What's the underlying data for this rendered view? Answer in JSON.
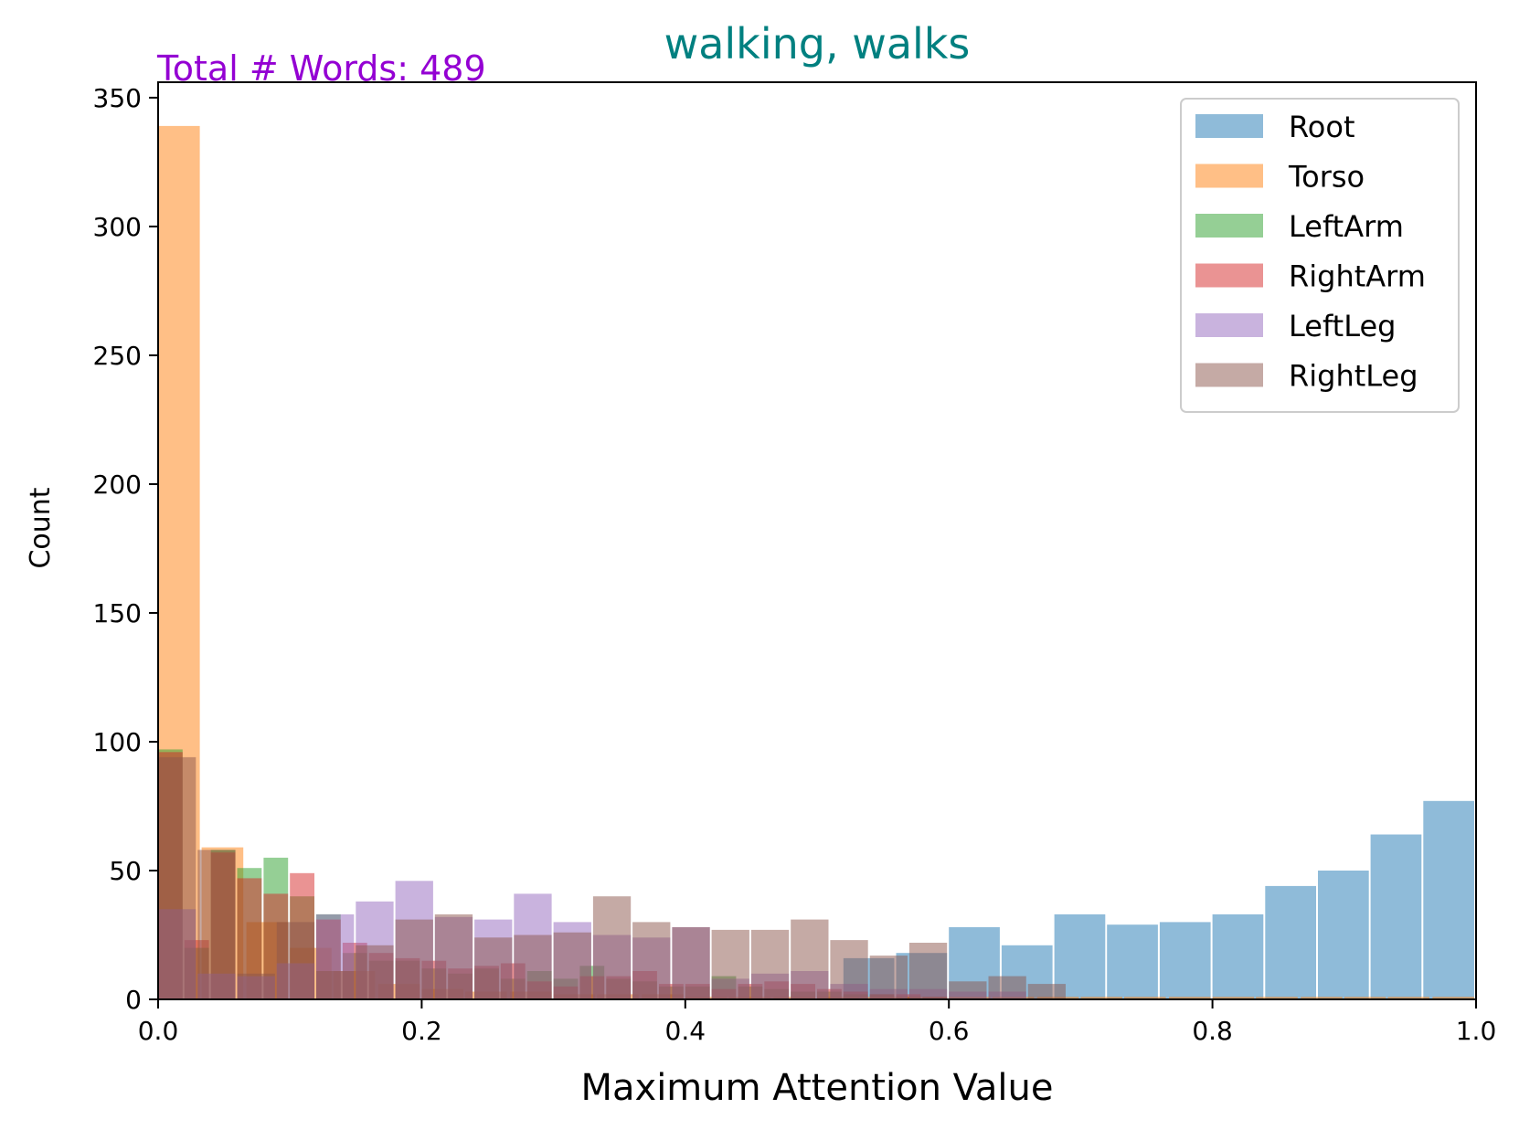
{
  "chart_data": {
    "type": "bar",
    "title": "walking, walks",
    "title_color": "#008080",
    "annotation": "Total # Words: 489",
    "annotation_color": "#9400D3",
    "xlabel": "Maximum Attention Value",
    "ylabel": "Count",
    "xlim": [
      0.0,
      1.0
    ],
    "ylim": [
      0,
      356
    ],
    "xticks": [
      "0.0",
      "0.2",
      "0.4",
      "0.6",
      "0.8",
      "1.0"
    ],
    "xtick_values": [
      0.0,
      0.2,
      0.4,
      0.6,
      0.8,
      1.0
    ],
    "yticks": [
      "0",
      "50",
      "100",
      "150",
      "200",
      "250",
      "300",
      "350"
    ],
    "ytick_values": [
      0,
      50,
      100,
      150,
      200,
      250,
      300,
      350
    ],
    "grid": false,
    "legend_position": "top-right",
    "bar_opacity": 0.5,
    "series": [
      {
        "name": "Root",
        "color": "#1f77b4",
        "binwidth": 0.04,
        "bins": [
          [
            0.52,
            16
          ],
          [
            0.56,
            18
          ],
          [
            0.6,
            28
          ],
          [
            0.64,
            21
          ],
          [
            0.68,
            33
          ],
          [
            0.72,
            29
          ],
          [
            0.76,
            30
          ],
          [
            0.8,
            33
          ],
          [
            0.84,
            44
          ],
          [
            0.88,
            50
          ],
          [
            0.92,
            64
          ],
          [
            0.96,
            77
          ]
        ]
      },
      {
        "name": "Torso",
        "color": "#ff7f0e",
        "binwidth": 0.033,
        "bins": [
          [
            0.0,
            339
          ],
          [
            0.033,
            59
          ],
          [
            0.067,
            30
          ],
          [
            0.1,
            20
          ],
          [
            0.133,
            11
          ],
          [
            0.167,
            6
          ],
          [
            0.2,
            4
          ],
          [
            0.233,
            3
          ],
          [
            0.267,
            3
          ],
          [
            0.3,
            2
          ],
          [
            0.333,
            2
          ],
          [
            0.367,
            2
          ],
          [
            0.4,
            1
          ],
          [
            0.433,
            1
          ],
          [
            0.467,
            1
          ],
          [
            0.5,
            1
          ],
          [
            0.533,
            1
          ],
          [
            0.567,
            1
          ],
          [
            0.6,
            1
          ],
          [
            0.633,
            1
          ],
          [
            0.667,
            1
          ],
          [
            0.7,
            1
          ],
          [
            0.733,
            1
          ],
          [
            0.767,
            1
          ],
          [
            0.8,
            1
          ],
          [
            0.833,
            1
          ],
          [
            0.867,
            1
          ],
          [
            0.9,
            1
          ],
          [
            0.933,
            1
          ],
          [
            0.967,
            1
          ]
        ]
      },
      {
        "name": "LeftArm",
        "color": "#2ca02c",
        "binwidth": 0.02,
        "bins": [
          [
            0.0,
            97
          ],
          [
            0.02,
            20
          ],
          [
            0.04,
            58
          ],
          [
            0.06,
            51
          ],
          [
            0.08,
            55
          ],
          [
            0.1,
            40
          ],
          [
            0.12,
            33
          ],
          [
            0.14,
            18
          ],
          [
            0.16,
            15
          ],
          [
            0.18,
            15
          ],
          [
            0.2,
            12
          ],
          [
            0.22,
            10
          ],
          [
            0.24,
            12
          ],
          [
            0.26,
            8
          ],
          [
            0.28,
            11
          ],
          [
            0.3,
            8
          ],
          [
            0.32,
            13
          ],
          [
            0.34,
            8
          ],
          [
            0.36,
            7
          ],
          [
            0.38,
            5
          ],
          [
            0.4,
            5
          ],
          [
            0.42,
            9
          ],
          [
            0.44,
            5
          ],
          [
            0.46,
            4
          ],
          [
            0.48,
            3
          ],
          [
            0.5,
            3
          ],
          [
            0.52,
            2
          ],
          [
            0.54,
            2
          ],
          [
            0.56,
            1
          ],
          [
            0.58,
            1
          ]
        ]
      },
      {
        "name": "RightArm",
        "color": "#d62728",
        "binwidth": 0.02,
        "bins": [
          [
            0.0,
            96
          ],
          [
            0.02,
            23
          ],
          [
            0.04,
            57
          ],
          [
            0.06,
            47
          ],
          [
            0.08,
            41
          ],
          [
            0.1,
            49
          ],
          [
            0.12,
            31
          ],
          [
            0.14,
            22
          ],
          [
            0.16,
            18
          ],
          [
            0.18,
            16
          ],
          [
            0.2,
            15
          ],
          [
            0.22,
            12
          ],
          [
            0.24,
            13
          ],
          [
            0.26,
            14
          ],
          [
            0.28,
            7
          ],
          [
            0.3,
            5
          ],
          [
            0.32,
            9
          ],
          [
            0.34,
            9
          ],
          [
            0.36,
            11
          ],
          [
            0.38,
            6
          ],
          [
            0.4,
            6
          ],
          [
            0.42,
            4
          ],
          [
            0.44,
            6
          ],
          [
            0.46,
            7
          ],
          [
            0.48,
            6
          ],
          [
            0.5,
            4
          ],
          [
            0.52,
            3
          ],
          [
            0.54,
            2
          ],
          [
            0.56,
            2
          ],
          [
            0.58,
            1
          ]
        ]
      },
      {
        "name": "LeftLeg",
        "color": "#9467bd",
        "binwidth": 0.03,
        "bins": [
          [
            0.0,
            35
          ],
          [
            0.03,
            10
          ],
          [
            0.06,
            9
          ],
          [
            0.09,
            14
          ],
          [
            0.12,
            33
          ],
          [
            0.15,
            38
          ],
          [
            0.18,
            46
          ],
          [
            0.21,
            32
          ],
          [
            0.24,
            31
          ],
          [
            0.27,
            41
          ],
          [
            0.3,
            30
          ],
          [
            0.33,
            25
          ],
          [
            0.36,
            24
          ],
          [
            0.39,
            28
          ],
          [
            0.42,
            8
          ],
          [
            0.45,
            10
          ],
          [
            0.48,
            11
          ],
          [
            0.51,
            6
          ],
          [
            0.54,
            4
          ],
          [
            0.57,
            4
          ],
          [
            0.6,
            3
          ],
          [
            0.63,
            3
          ]
        ]
      },
      {
        "name": "RightLeg",
        "color": "#8c564b",
        "binwidth": 0.03,
        "bins": [
          [
            0.0,
            94
          ],
          [
            0.03,
            58
          ],
          [
            0.06,
            10
          ],
          [
            0.09,
            30
          ],
          [
            0.12,
            11
          ],
          [
            0.15,
            21
          ],
          [
            0.18,
            31
          ],
          [
            0.21,
            33
          ],
          [
            0.24,
            24
          ],
          [
            0.27,
            25
          ],
          [
            0.3,
            26
          ],
          [
            0.33,
            40
          ],
          [
            0.36,
            30
          ],
          [
            0.39,
            28
          ],
          [
            0.42,
            27
          ],
          [
            0.45,
            27
          ],
          [
            0.48,
            31
          ],
          [
            0.51,
            23
          ],
          [
            0.54,
            17
          ],
          [
            0.57,
            22
          ],
          [
            0.6,
            7
          ],
          [
            0.63,
            9
          ],
          [
            0.66,
            6
          ]
        ]
      }
    ]
  }
}
